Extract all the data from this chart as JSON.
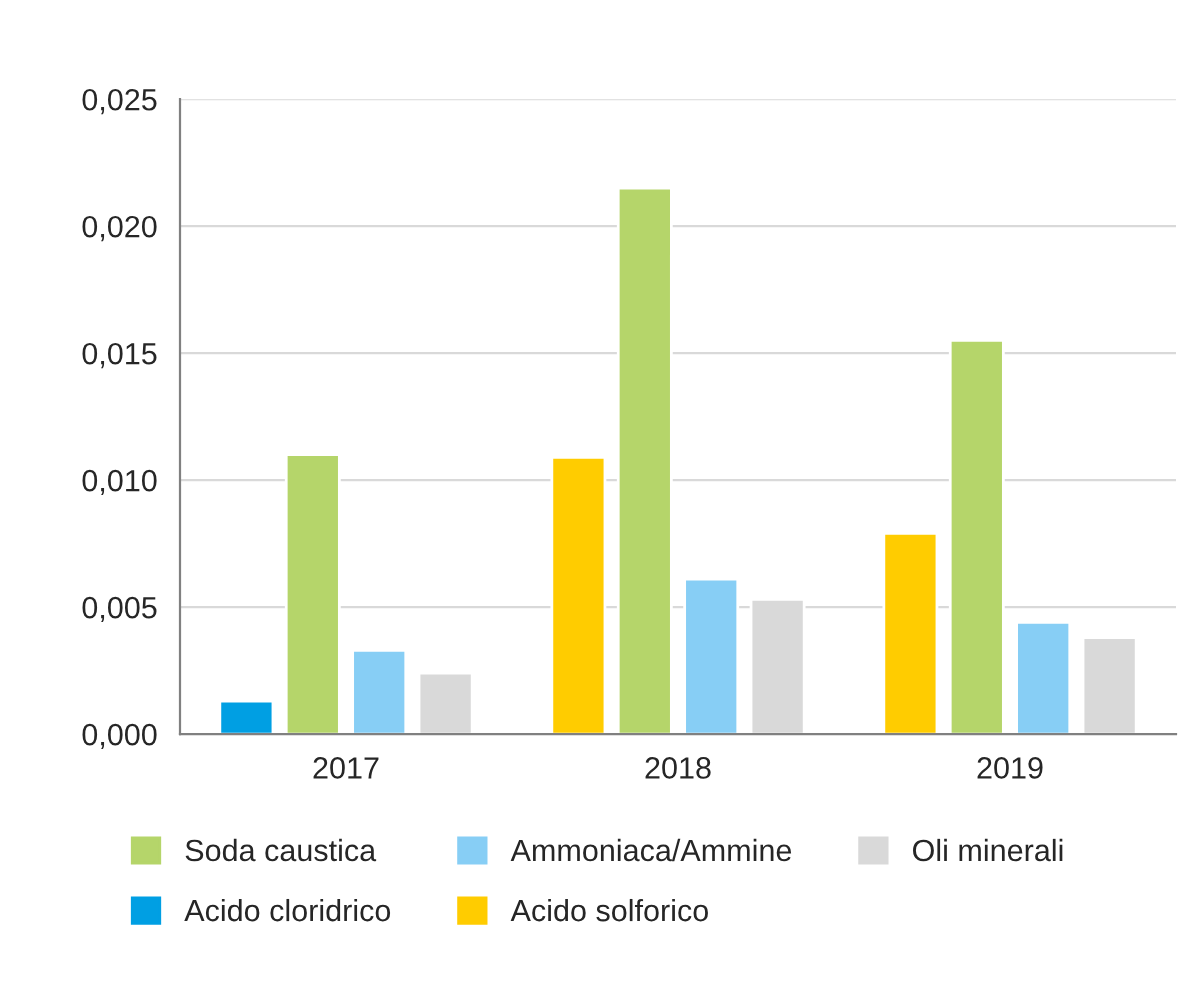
{
  "chart_data": {
    "type": "bar",
    "categories": [
      "2017",
      "2018",
      "2019"
    ],
    "series": [
      {
        "name": "Acido cloridrico",
        "color": "#009fe3",
        "values": [
          0.0013,
          null,
          null
        ]
      },
      {
        "name": "Acido solforico",
        "color": "#ffcc00",
        "values": [
          null,
          0.0109,
          0.0079
        ]
      },
      {
        "name": "Soda caustica",
        "color": "#b5d56a",
        "values": [
          0.011,
          0.0215,
          0.0155
        ]
      },
      {
        "name": "Ammoniaca/Ammine",
        "color": "#87cef5",
        "values": [
          0.0033,
          0.0061,
          0.0044
        ]
      },
      {
        "name": "Oli minerali",
        "color": "#d9d9d9",
        "values": [
          0.0024,
          0.0053,
          0.0038
        ]
      }
    ],
    "ylim": [
      0,
      0.025
    ],
    "yticks": [
      {
        "value": 0,
        "label": "0,000"
      },
      {
        "value": 0.005,
        "label": "0,005"
      },
      {
        "value": 0.01,
        "label": "0,010"
      },
      {
        "value": 0.015,
        "label": "0,015"
      },
      {
        "value": 0.02,
        "label": "0,020"
      },
      {
        "value": 0.025,
        "label": "0,025"
      }
    ],
    "grid": "y",
    "legend": "bottom"
  }
}
